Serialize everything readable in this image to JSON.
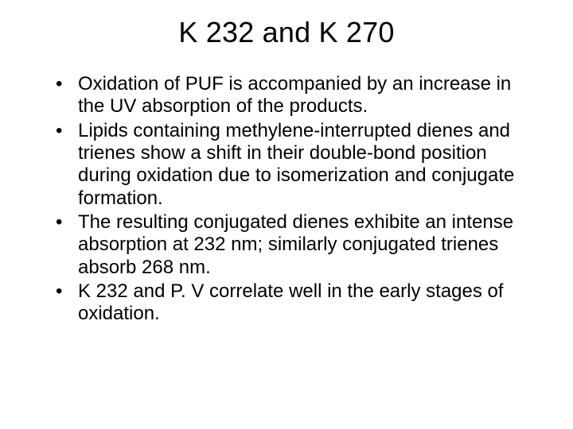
{
  "slide": {
    "title": "K 232 and K 270",
    "bullets": [
      "Oxidation of PUF is accompanied by an increase in the UV absorption of the products.",
      "Lipids containing methylene-interrupted dienes and trienes show a shift in their double-bond position during oxidation due to isomerization and conjugate formation.",
      "The resulting conjugated dienes exhibite an intense absorption at 232 nm; similarly conjugated trienes absorb 268 nm.",
      "K 232 and P. V correlate well in the early stages of oxidation."
    ]
  },
  "style": {
    "background_color": "#ffffff",
    "text_color": "#000000",
    "title_fontsize": 36,
    "body_fontsize": 24,
    "font_family": "Arial",
    "bullet_glyph": "•"
  }
}
